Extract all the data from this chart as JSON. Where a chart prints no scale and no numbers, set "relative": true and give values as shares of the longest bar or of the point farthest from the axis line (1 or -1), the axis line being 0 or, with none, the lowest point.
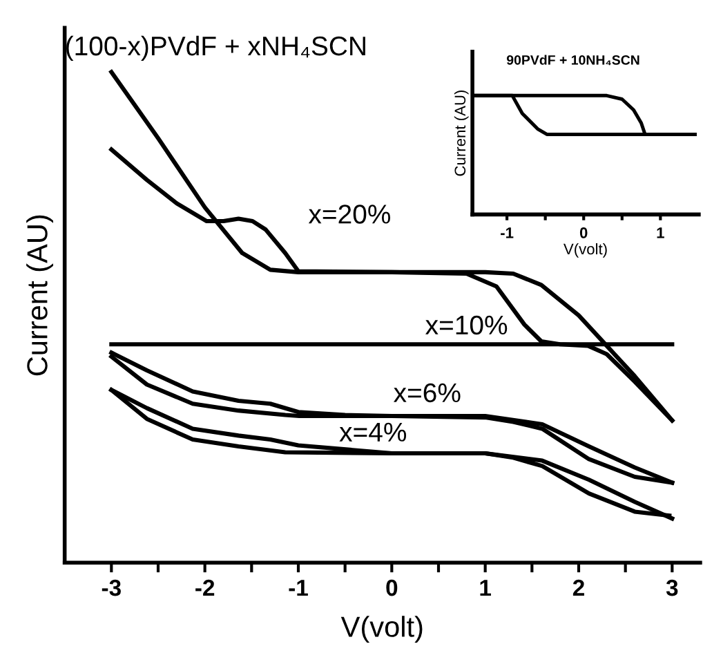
{
  "chart_data": [
    {
      "type": "line",
      "relative": true,
      "title": "(100-x)PVdF + xNH₄SCN",
      "xlabel": "V(volt)",
      "ylabel": "Current (AU)",
      "xlim": [
        -3.5,
        3.3
      ],
      "xticks": [
        -3,
        {
          "value": -2.5,
          "label": null
        },
        -2,
        {
          "value": -1.5,
          "label": null
        },
        -1,
        {
          "value": -0.5,
          "label": null
        },
        0,
        {
          "value": 0.5,
          "label": null
        },
        1,
        {
          "value": 1.5,
          "label": null
        },
        2,
        {
          "value": 2.5,
          "label": null
        },
        3
      ],
      "series": [
        {
          "name": "x=20%",
          "color": "#000000",
          "x": [
            -3,
            -2.5,
            -2.0,
            -1.6,
            -1.3,
            -1.0,
            0.0,
            1.0,
            1.3,
            1.6,
            2.0,
            2.3,
            2.6,
            3.0
          ],
          "values": [
            1.0,
            0.865,
            0.724,
            0.631,
            0.597,
            0.592,
            0.592,
            0.592,
            0.589,
            0.566,
            0.504,
            0.442,
            0.38,
            0.29
          ]
        },
        {
          "color": "#000000",
          "x": [
            -3.0,
            -2.62,
            -2.3,
            -1.98,
            -1.8,
            -1.64,
            -1.49,
            -1.35,
            -1.14,
            -1.0,
            0.0,
            0.8,
            1.12,
            1.42,
            1.6,
            1.8,
            2.1,
            2.3,
            2.6,
            3.0
          ],
          "values": [
            0.842,
            0.78,
            0.732,
            0.696,
            0.696,
            0.701,
            0.696,
            0.679,
            0.631,
            0.594,
            0.592,
            0.589,
            0.563,
            0.485,
            0.451,
            0.445,
            0.442,
            0.425,
            0.369,
            0.29
          ]
        },
        {
          "name": "x=10%",
          "color": "#000000",
          "x": [
            -3,
            3
          ],
          "values": [
            0.445,
            0.445
          ]
        },
        {
          "name": "x=6%",
          "color": "#000000",
          "x": [
            -3,
            -2.62,
            -2.13,
            -1.64,
            -1.3,
            -1.0,
            -0.5,
            0.0,
            1.0,
            1.61,
            2.11,
            2.6,
            3.0
          ],
          "values": [
            0.428,
            0.392,
            0.349,
            0.33,
            0.324,
            0.307,
            0.301,
            0.299,
            0.299,
            0.282,
            0.237,
            0.194,
            0.163
          ]
        },
        {
          "color": "#000000",
          "x": [
            -3,
            -2.62,
            -2.13,
            -1.64,
            -1.14,
            -0.99,
            0.0,
            1.0,
            1.3,
            1.61,
            2.11,
            2.6,
            3.0
          ],
          "values": [
            0.42,
            0.363,
            0.324,
            0.31,
            0.301,
            0.299,
            0.299,
            0.296,
            0.287,
            0.273,
            0.211,
            0.175,
            0.163
          ]
        },
        {
          "name": "x=4%",
          "color": "#000000",
          "x": [
            -3,
            -2.62,
            -2.13,
            -1.64,
            -1.3,
            -1.0,
            0.0,
            1.0,
            1.61,
            2.11,
            2.6,
            3.0
          ],
          "values": [
            0.352,
            0.315,
            0.273,
            0.259,
            0.251,
            0.239,
            0.223,
            0.223,
            0.208,
            0.169,
            0.124,
            0.09
          ]
        },
        {
          "color": "#000000",
          "x": [
            -3,
            -2.62,
            -2.13,
            -1.64,
            -1.14,
            0.0,
            1.0,
            1.3,
            1.61,
            2.11,
            2.6,
            2.97
          ],
          "values": [
            0.352,
            0.293,
            0.251,
            0.237,
            0.225,
            0.223,
            0.223,
            0.214,
            0.197,
            0.141,
            0.104,
            0.096
          ]
        }
      ]
    },
    {
      "type": "line",
      "relative": true,
      "title": "90PVdF + 10NH₄SCN",
      "xlabel": "V(volt)",
      "ylabel": "Current (AU)",
      "xlim": [
        -1.45,
        1.5
      ],
      "xticks": [
        -1,
        {
          "value": -0.5,
          "label": null
        },
        0,
        {
          "value": 0.5,
          "label": null
        },
        1
      ],
      "series": [
        {
          "color": "#000000",
          "x": [
            -1.45,
            0.0,
            0.3,
            0.5,
            0.65,
            0.75,
            0.8,
            1.45
          ],
          "values": [
            1.0,
            1.0,
            1.0,
            0.97,
            0.88,
            0.77,
            0.674,
            0.674
          ]
        },
        {
          "color": "#000000",
          "x": [
            -1.45,
            -0.93,
            -0.8,
            -0.6,
            -0.48,
            0.0,
            1.45
          ],
          "values": [
            1.0,
            1.0,
            0.85,
            0.72,
            0.674,
            0.674,
            0.674
          ]
        }
      ]
    }
  ]
}
